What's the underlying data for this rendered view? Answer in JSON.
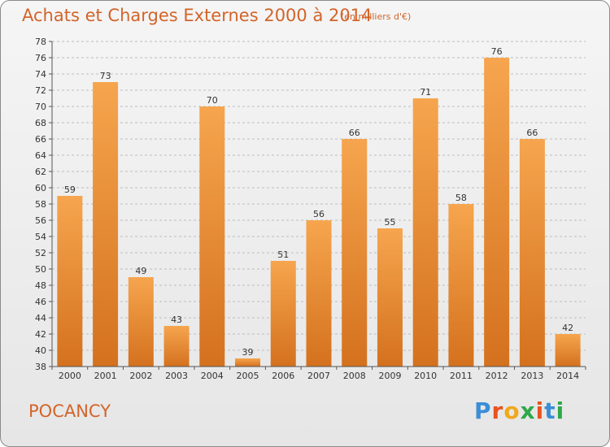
{
  "header": {
    "title": "Achats et Charges Externes 2000 à 2014",
    "subtitle": "(en milliers d'€)"
  },
  "footer": {
    "commune": "POCANCY",
    "logo_letters": [
      "P",
      "r",
      "o",
      "x",
      "i",
      "t",
      "i"
    ]
  },
  "colors": {
    "title": "#d2642a",
    "bar_light": "#f6a54e",
    "bar_dark": "#d4711e",
    "logo": [
      "#3b8ed6",
      "#e8531e",
      "#f0a81c",
      "#2ea84a",
      "#e8531e",
      "#3b8ed6",
      "#2ea84a"
    ]
  },
  "chart_data": {
    "type": "bar",
    "title": "Achats et Charges Externes 2000 à 2014",
    "subtitle": "(en milliers d'€)",
    "categories": [
      "2000",
      "2001",
      "2002",
      "2003",
      "2004",
      "2005",
      "2006",
      "2007",
      "2008",
      "2009",
      "2010",
      "2011",
      "2012",
      "2013",
      "2014"
    ],
    "values": [
      59,
      73,
      49,
      43,
      70,
      39,
      51,
      56,
      66,
      55,
      71,
      58,
      76,
      66,
      42
    ],
    "yticks": [
      38,
      40,
      42,
      44,
      46,
      48,
      50,
      52,
      54,
      56,
      58,
      60,
      62,
      64,
      66,
      68,
      70,
      72,
      74,
      76,
      78
    ],
    "ylim": [
      38,
      78
    ],
    "grid": true,
    "grid_style": "dashed-horizontal"
  }
}
